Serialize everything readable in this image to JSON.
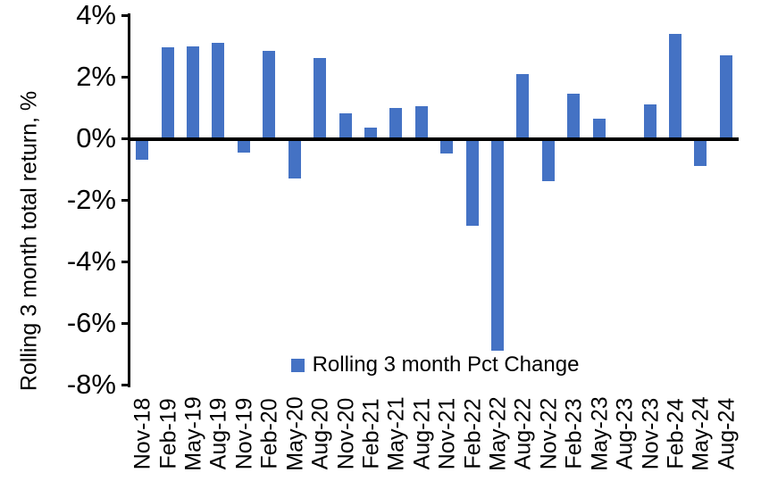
{
  "chart_data": {
    "type": "bar",
    "title": "",
    "ylabel": "Rolling 3 month total return, %",
    "xlabel": "",
    "legend_label": "Rolling 3 month Pct Change",
    "legend_position": "bottom-inside-center",
    "bar_color": "#4472C4",
    "axis_color": "#000000",
    "grid": false,
    "ylim": [
      -8,
      4
    ],
    "y_ticks": [
      {
        "value": 4,
        "label": "4%"
      },
      {
        "value": 2,
        "label": "2%"
      },
      {
        "value": 0,
        "label": "0%"
      },
      {
        "value": -2,
        "label": "-2%"
      },
      {
        "value": -4,
        "label": "-4%"
      },
      {
        "value": -6,
        "label": "-6%"
      },
      {
        "value": -8,
        "label": "-8%"
      }
    ],
    "categories": [
      "Nov-18",
      "Feb-19",
      "May-19",
      "Aug-19",
      "Nov-19",
      "Feb-20",
      "May-20",
      "Aug-20",
      "Nov-20",
      "Feb-21",
      "May-21",
      "Aug-21",
      "Nov-21",
      "Feb-22",
      "May-22",
      "Aug-22",
      "Nov-22",
      "Feb-23",
      "May-23",
      "Aug-23",
      "Nov-23",
      "Feb-24",
      "May-24",
      "Aug-24"
    ],
    "values": [
      -0.7,
      2.95,
      3.0,
      3.1,
      -0.45,
      2.85,
      -1.3,
      2.6,
      0.8,
      0.35,
      1.0,
      1.05,
      -0.5,
      -2.85,
      -6.9,
      2.1,
      -1.4,
      1.45,
      0.65,
      0,
      1.1,
      3.4,
      -0.9,
      2.7
    ]
  }
}
